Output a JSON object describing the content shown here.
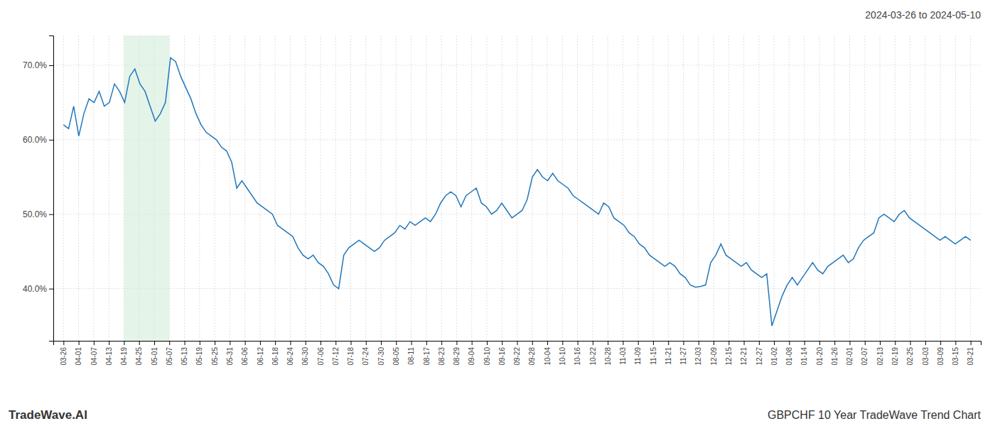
{
  "chart_data": {
    "type": "line",
    "title": "GBPCHF 10 Year TradeWave Trend Chart",
    "subtitle": "2024-03-26 to 2024-05-10",
    "annotations": [
      "TradeWave.AI"
    ],
    "color": "#2277bb",
    "grid": true,
    "highlight": {
      "x": [
        11.866666666666667,
        20.766666666666666
      ],
      "color": "#d4edda"
    },
    "xlim": [
      -2,
      180
    ],
    "xticks": [
      {
        "value": 0,
        "label": "03-26"
      },
      {
        "value": 2.966666666666667,
        "label": "04-01"
      },
      {
        "value": 5.933333333333334,
        "label": "04-07"
      },
      {
        "value": 8.9,
        "label": "04-13"
      },
      {
        "value": 11.866666666666667,
        "label": "04-19"
      },
      {
        "value": 14.833333333333334,
        "label": "04-25"
      },
      {
        "value": 17.8,
        "label": "05-01"
      },
      {
        "value": 20.766666666666666,
        "label": "05-07"
      },
      {
        "value": 23.733333333333334,
        "label": "05-13"
      },
      {
        "value": 26.7,
        "label": "05-19"
      },
      {
        "value": 29.666666666666668,
        "label": "05-25"
      },
      {
        "value": 32.63333333333333,
        "label": "05-31"
      },
      {
        "value": 35.6,
        "label": "06-06"
      },
      {
        "value": 38.56666666666667,
        "label": "06-12"
      },
      {
        "value": 41.53333333333333,
        "label": "06-18"
      },
      {
        "value": 44.5,
        "label": "06-24"
      },
      {
        "value": 47.46666666666667,
        "label": "06-30"
      },
      {
        "value": 50.43333333333333,
        "label": "07-06"
      },
      {
        "value": 53.4,
        "label": "07-12"
      },
      {
        "value": 56.36666666666667,
        "label": "07-18"
      },
      {
        "value": 59.333333333333336,
        "label": "07-24"
      },
      {
        "value": 62.3,
        "label": "07-30"
      },
      {
        "value": 65.26666666666667,
        "label": "08-05"
      },
      {
        "value": 68.23333333333333,
        "label": "08-11"
      },
      {
        "value": 71.2,
        "label": "08-17"
      },
      {
        "value": 74.16666666666667,
        "label": "08-23"
      },
      {
        "value": 77.13333333333334,
        "label": "08-29"
      },
      {
        "value": 80.1,
        "label": "09-04"
      },
      {
        "value": 83.06666666666666,
        "label": "09-10"
      },
      {
        "value": 86.03333333333333,
        "label": "09-16"
      },
      {
        "value": 89,
        "label": "09-22"
      },
      {
        "value": 91.96666666666667,
        "label": "09-28"
      },
      {
        "value": 94.93333333333334,
        "label": "10-04"
      },
      {
        "value": 97.9,
        "label": "10-10"
      },
      {
        "value": 100.86666666666667,
        "label": "10-16"
      },
      {
        "value": 103.83333333333333,
        "label": "10-22"
      },
      {
        "value": 106.8,
        "label": "10-28"
      },
      {
        "value": 109.76666666666667,
        "label": "11-03"
      },
      {
        "value": 112.73333333333333,
        "label": "11-09"
      },
      {
        "value": 115.7,
        "label": "11-15"
      },
      {
        "value": 118.66666666666667,
        "label": "11-21"
      },
      {
        "value": 121.63333333333333,
        "label": "11-27"
      },
      {
        "value": 124.6,
        "label": "12-03"
      },
      {
        "value": 127.56666666666666,
        "label": "12-09"
      },
      {
        "value": 130.53333333333333,
        "label": "12-15"
      },
      {
        "value": 133.5,
        "label": "12-21"
      },
      {
        "value": 136.46666666666667,
        "label": "12-27"
      },
      {
        "value": 139.43333333333334,
        "label": "01-02"
      },
      {
        "value": 142.4,
        "label": "01-08"
      },
      {
        "value": 145.36666666666667,
        "label": "01-14"
      },
      {
        "value": 148.33333333333334,
        "label": "01-20"
      },
      {
        "value": 151.3,
        "label": "01-26"
      },
      {
        "value": 154.26666666666668,
        "label": "02-01"
      },
      {
        "value": 157.23333333333332,
        "label": "02-07"
      },
      {
        "value": 160.2,
        "label": "02-13"
      },
      {
        "value": 163.16666666666666,
        "label": "02-19"
      },
      {
        "value": 166.13333333333333,
        "label": "02-25"
      },
      {
        "value": 169.1,
        "label": "03-03"
      },
      {
        "value": 172.06666666666666,
        "label": "03-09"
      },
      {
        "value": 175.03333333333333,
        "label": "03-15"
      },
      {
        "value": 178,
        "label": "03-21"
      }
    ],
    "ylim": [
      33,
      74
    ],
    "yticks": [
      {
        "value": 40.0,
        "label": "40.0%"
      },
      {
        "value": 50.0,
        "label": "50.0%"
      },
      {
        "value": 60.0,
        "label": "60.0%"
      },
      {
        "value": 70.0,
        "label": "70.0%"
      }
    ],
    "values": [
      62.0,
      61.5,
      64.5,
      60.5,
      63.5,
      65.5,
      65.0,
      66.5,
      64.5,
      65.0,
      67.5,
      66.5,
      65.0,
      68.5,
      69.5,
      67.5,
      66.5,
      64.5,
      62.5,
      63.5,
      65.0,
      71.0,
      70.5,
      68.5,
      67.0,
      65.5,
      63.5,
      62.0,
      61.0,
      60.5,
      60.0,
      59.0,
      58.5,
      57.0,
      53.5,
      54.5,
      53.5,
      52.5,
      51.5,
      51.0,
      50.5,
      50.0,
      48.5,
      48.0,
      47.5,
      47.0,
      45.5,
      44.5,
      44.0,
      44.5,
      43.5,
      43.0,
      42.0,
      40.5,
      40.0,
      44.5,
      45.5,
      46.0,
      46.5,
      46.0,
      45.5,
      45.0,
      45.5,
      46.5,
      47.0,
      47.5,
      48.5,
      48.0,
      49.0,
      48.5,
      49.0,
      49.5,
      49.0,
      50.0,
      51.5,
      52.5,
      53.0,
      52.5,
      51.0,
      52.5,
      53.0,
      53.5,
      51.5,
      51.0,
      50.0,
      50.5,
      51.5,
      50.5,
      49.5,
      50.0,
      50.5,
      52.0,
      55.0,
      56.0,
      55.0,
      54.5,
      55.5,
      54.5,
      54.0,
      53.5,
      52.5,
      52.0,
      51.5,
      51.0,
      50.5,
      50.0,
      51.5,
      51.0,
      49.5,
      49.0,
      48.5,
      47.5,
      47.0,
      46.0,
      45.5,
      44.5,
      44.0,
      43.5,
      43.0,
      43.5,
      43.0,
      42.0,
      41.5,
      40.5,
      40.2,
      40.3,
      40.5,
      43.5,
      44.5,
      46.0,
      44.5,
      44.0,
      43.5,
      43.0,
      43.5,
      42.5,
      42.0,
      41.5,
      42.0,
      35.0,
      37.0,
      39.0,
      40.5,
      41.5,
      40.5,
      41.5,
      42.5,
      43.5,
      42.5,
      42.0,
      43.0,
      43.5,
      44.0,
      44.5,
      43.5,
      44.0,
      45.5,
      46.5,
      47.0,
      47.5,
      49.5,
      50.0,
      49.5,
      49.0,
      50.0,
      50.5,
      49.5,
      49.0,
      48.5,
      48.0,
      47.5,
      47.0,
      46.5,
      47.0,
      46.5,
      46.0,
      46.5,
      47.0,
      46.5
    ]
  }
}
